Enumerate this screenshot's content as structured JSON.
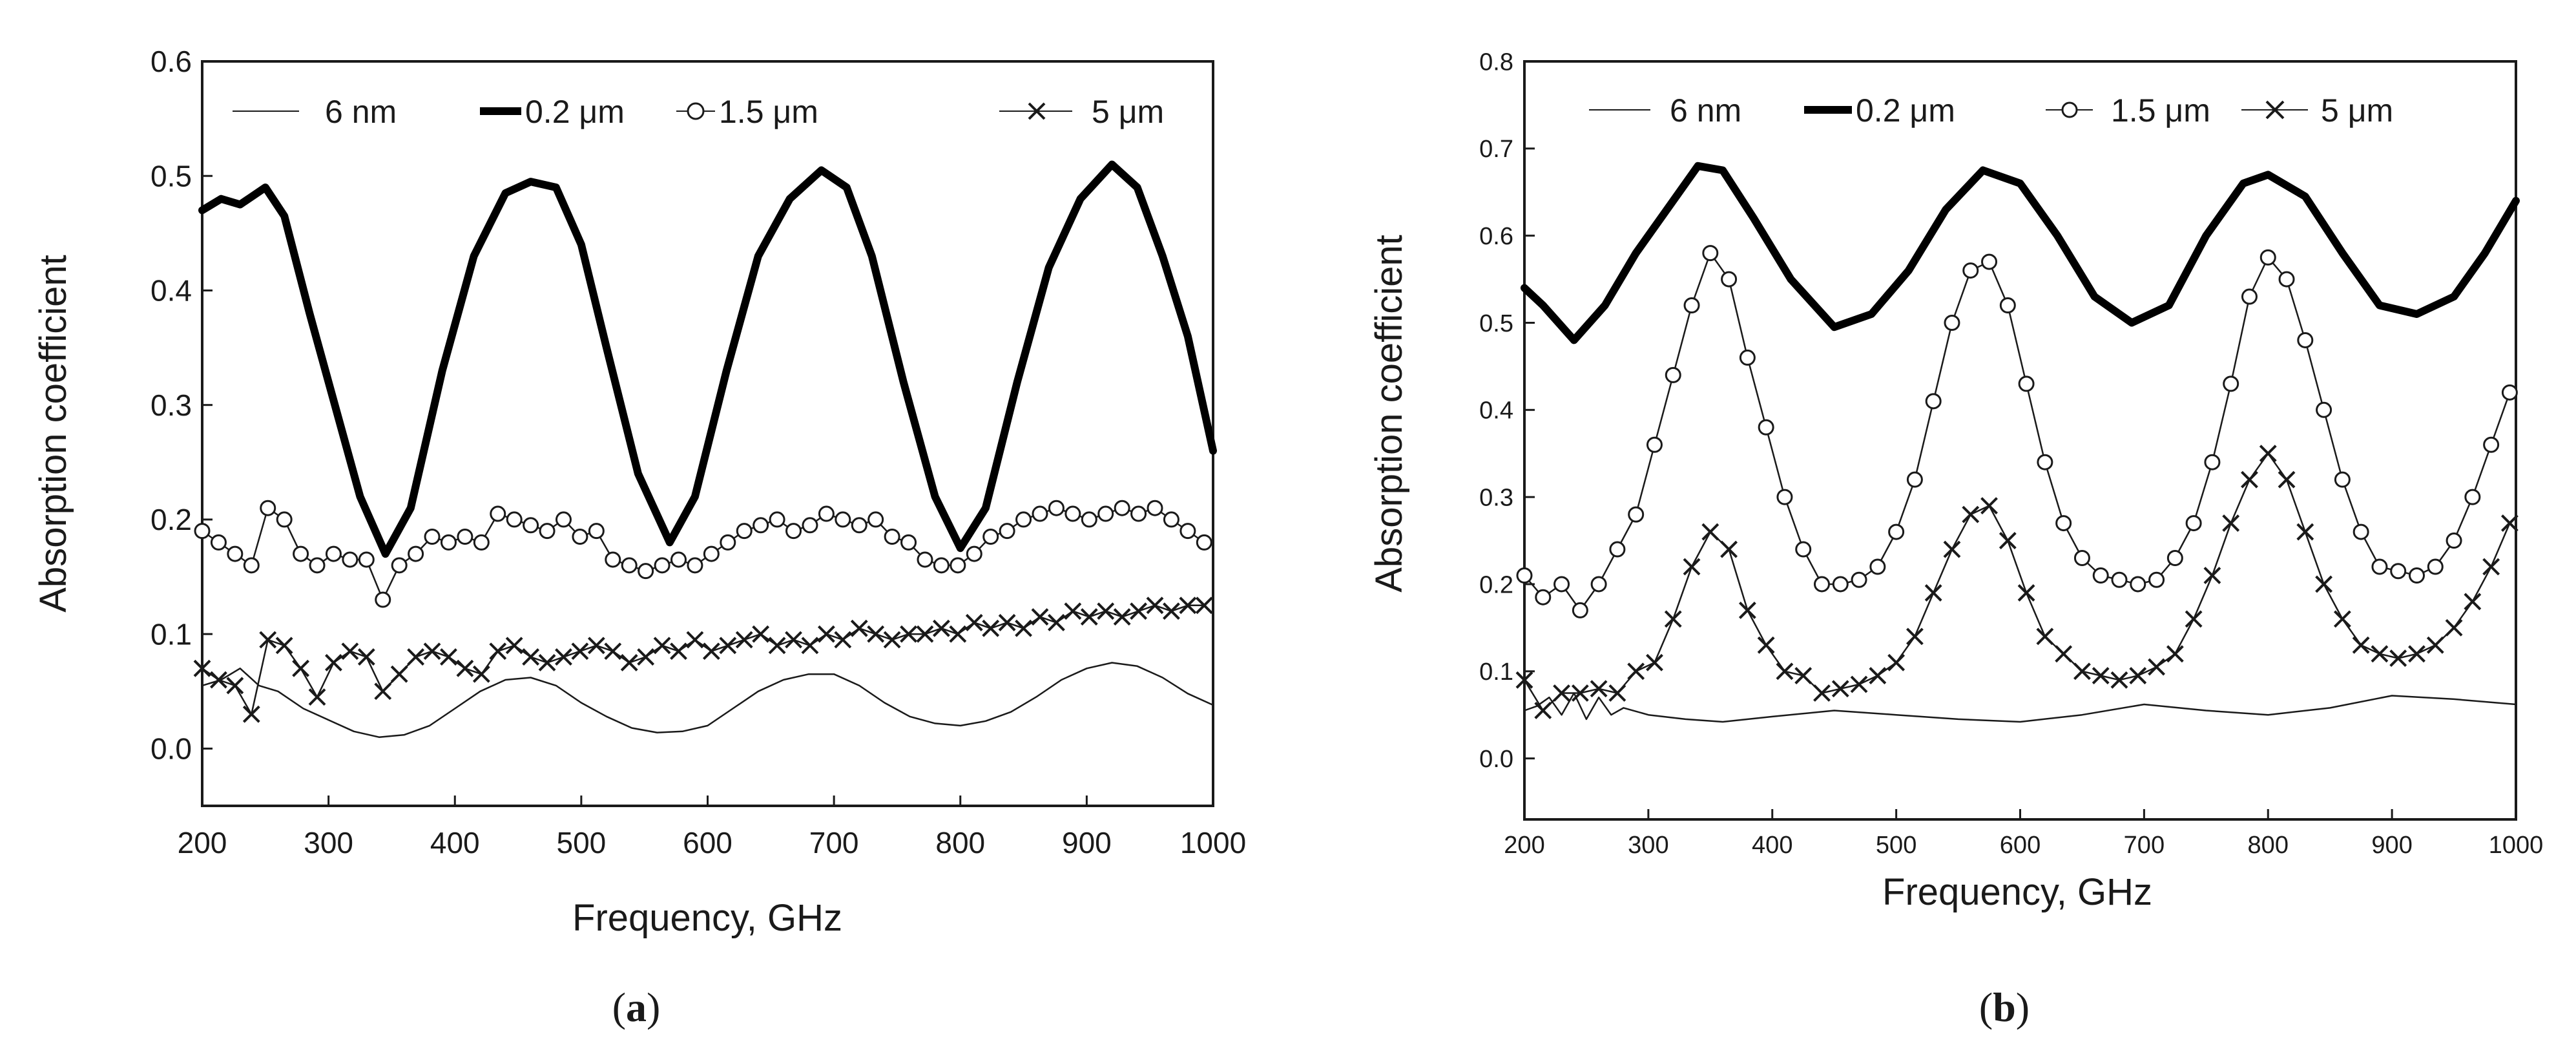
{
  "chart_data": [
    {
      "panel_label": "a",
      "type": "line",
      "xlabel": "Frequency, GHz",
      "ylabel": "Absorption coefficient",
      "xlim": [
        200,
        1000
      ],
      "ylim": [
        -0.05,
        0.6
      ],
      "xticks": [
        200,
        300,
        400,
        500,
        600,
        700,
        800,
        900,
        1000
      ],
      "yticks": [
        0.0,
        0.1,
        0.2,
        0.3,
        0.4,
        0.5,
        0.6
      ],
      "ytick_labels": [
        "0.0",
        "0.1",
        "0.2",
        "0.3",
        "0.4",
        "0.5",
        "0.6"
      ],
      "xtick_labels": [
        "200",
        "300",
        "400",
        "500",
        "600",
        "700",
        "800",
        "900",
        "1000"
      ],
      "grid": false,
      "legend_position": "top",
      "series": [
        {
          "name": "6 nm",
          "style": "thin",
          "x": [
            200,
            215,
            230,
            245,
            260,
            280,
            300,
            320,
            340,
            360,
            380,
            400,
            420,
            440,
            460,
            480,
            500,
            520,
            540,
            560,
            580,
            600,
            620,
            640,
            660,
            680,
            700,
            720,
            740,
            760,
            780,
            800,
            820,
            840,
            860,
            880,
            900,
            920,
            940,
            960,
            980,
            1000
          ],
          "y": [
            0.055,
            0.06,
            0.07,
            0.055,
            0.05,
            0.035,
            0.025,
            0.015,
            0.01,
            0.012,
            0.02,
            0.035,
            0.05,
            0.06,
            0.062,
            0.055,
            0.04,
            0.028,
            0.018,
            0.014,
            0.015,
            0.02,
            0.035,
            0.05,
            0.06,
            0.065,
            0.065,
            0.055,
            0.04,
            0.028,
            0.022,
            0.02,
            0.024,
            0.032,
            0.045,
            0.06,
            0.07,
            0.075,
            0.072,
            0.062,
            0.048,
            0.038
          ]
        },
        {
          "name": "0.2 μm",
          "style": "thick",
          "x": [
            200,
            215,
            230,
            250,
            265,
            285,
            305,
            325,
            345,
            365,
            390,
            415,
            440,
            460,
            480,
            500,
            520,
            545,
            570,
            590,
            615,
            640,
            665,
            690,
            710,
            730,
            755,
            780,
            800,
            820,
            845,
            870,
            895,
            920,
            940,
            960,
            980,
            1000
          ],
          "y": [
            0.47,
            0.48,
            0.475,
            0.49,
            0.465,
            0.38,
            0.3,
            0.22,
            0.17,
            0.21,
            0.33,
            0.43,
            0.485,
            0.495,
            0.49,
            0.44,
            0.35,
            0.24,
            0.18,
            0.22,
            0.33,
            0.43,
            0.48,
            0.505,
            0.49,
            0.43,
            0.32,
            0.22,
            0.175,
            0.21,
            0.32,
            0.42,
            0.48,
            0.51,
            0.49,
            0.43,
            0.36,
            0.26
          ]
        },
        {
          "name": "1.5 μm",
          "style": "circle",
          "x": [
            200,
            213,
            226,
            239,
            252,
            265,
            278,
            291,
            304,
            317,
            330,
            343,
            356,
            369,
            382,
            395,
            408,
            421,
            434,
            447,
            460,
            473,
            486,
            499,
            512,
            525,
            538,
            551,
            564,
            577,
            590,
            603,
            616,
            629,
            642,
            655,
            668,
            681,
            694,
            707,
            720,
            733,
            746,
            759,
            772,
            785,
            798,
            811,
            824,
            837,
            850,
            863,
            876,
            889,
            902,
            915,
            928,
            941,
            954,
            967,
            980,
            993
          ],
          "y": [
            0.19,
            0.18,
            0.17,
            0.16,
            0.21,
            0.2,
            0.17,
            0.16,
            0.17,
            0.165,
            0.165,
            0.13,
            0.16,
            0.17,
            0.185,
            0.18,
            0.185,
            0.18,
            0.205,
            0.2,
            0.195,
            0.19,
            0.2,
            0.185,
            0.19,
            0.165,
            0.16,
            0.155,
            0.16,
            0.165,
            0.16,
            0.17,
            0.18,
            0.19,
            0.195,
            0.2,
            0.19,
            0.195,
            0.205,
            0.2,
            0.195,
            0.2,
            0.185,
            0.18,
            0.165,
            0.16,
            0.16,
            0.17,
            0.185,
            0.19,
            0.2,
            0.205,
            0.21,
            0.205,
            0.2,
            0.205,
            0.21,
            0.205,
            0.21,
            0.2,
            0.19,
            0.18
          ]
        },
        {
          "name": "5 μm",
          "style": "cross",
          "x": [
            200,
            213,
            226,
            239,
            252,
            265,
            278,
            291,
            304,
            317,
            330,
            343,
            356,
            369,
            382,
            395,
            408,
            421,
            434,
            447,
            460,
            473,
            486,
            499,
            512,
            525,
            538,
            551,
            564,
            577,
            590,
            603,
            616,
            629,
            642,
            655,
            668,
            681,
            694,
            707,
            720,
            733,
            746,
            759,
            772,
            785,
            798,
            811,
            824,
            837,
            850,
            863,
            876,
            889,
            902,
            915,
            928,
            941,
            954,
            967,
            980,
            993
          ],
          "y": [
            0.07,
            0.06,
            0.055,
            0.03,
            0.095,
            0.09,
            0.07,
            0.045,
            0.075,
            0.085,
            0.08,
            0.05,
            0.065,
            0.08,
            0.085,
            0.08,
            0.07,
            0.065,
            0.085,
            0.09,
            0.08,
            0.075,
            0.08,
            0.085,
            0.09,
            0.085,
            0.075,
            0.08,
            0.09,
            0.085,
            0.095,
            0.085,
            0.09,
            0.095,
            0.1,
            0.09,
            0.095,
            0.09,
            0.1,
            0.095,
            0.105,
            0.1,
            0.095,
            0.1,
            0.1,
            0.105,
            0.1,
            0.11,
            0.105,
            0.11,
            0.105,
            0.115,
            0.11,
            0.12,
            0.115,
            0.12,
            0.115,
            0.12,
            0.125,
            0.12,
            0.125,
            0.125
          ]
        }
      ]
    },
    {
      "panel_label": "b",
      "type": "line",
      "xlabel": "Frequency, GHz",
      "ylabel": "Absorption coefficient",
      "xlim": [
        200,
        1000
      ],
      "ylim": [
        -0.07,
        0.8
      ],
      "xticks": [
        200,
        300,
        400,
        500,
        600,
        700,
        800,
        900,
        1000
      ],
      "yticks": [
        0.0,
        0.1,
        0.2,
        0.3,
        0.4,
        0.5,
        0.6,
        0.7,
        0.8
      ],
      "ytick_labels": [
        "0.0",
        "0.1",
        "0.2",
        "0.3",
        "0.4",
        "0.5",
        "0.6",
        "0.7",
        "0.8"
      ],
      "xtick_labels": [
        "200",
        "300",
        "400",
        "500",
        "600",
        "700",
        "800",
        "900",
        "1000"
      ],
      "grid": false,
      "legend_position": "top",
      "series": [
        {
          "name": "6 nm",
          "style": "thin",
          "x": [
            200,
            210,
            220,
            230,
            240,
            250,
            260,
            270,
            280,
            300,
            330,
            360,
            400,
            450,
            500,
            550,
            600,
            650,
            700,
            750,
            800,
            850,
            900,
            950,
            1000
          ],
          "y": [
            0.055,
            0.06,
            0.07,
            0.05,
            0.075,
            0.045,
            0.07,
            0.05,
            0.058,
            0.05,
            0.045,
            0.042,
            0.048,
            0.055,
            0.05,
            0.045,
            0.042,
            0.05,
            0.062,
            0.055,
            0.05,
            0.058,
            0.072,
            0.068,
            0.062
          ]
        },
        {
          "name": "0.2 μm",
          "style": "thick",
          "x": [
            200,
            215,
            240,
            265,
            290,
            315,
            340,
            360,
            385,
            415,
            450,
            480,
            510,
            540,
            570,
            600,
            630,
            660,
            690,
            720,
            750,
            780,
            800,
            830,
            860,
            890,
            920,
            950,
            975,
            1000
          ],
          "y": [
            0.54,
            0.52,
            0.48,
            0.52,
            0.58,
            0.63,
            0.68,
            0.675,
            0.62,
            0.55,
            0.495,
            0.51,
            0.56,
            0.63,
            0.675,
            0.66,
            0.6,
            0.53,
            0.5,
            0.52,
            0.6,
            0.66,
            0.67,
            0.645,
            0.58,
            0.52,
            0.51,
            0.53,
            0.58,
            0.64
          ]
        },
        {
          "name": "1.5 μm",
          "style": "circle",
          "x": [
            200,
            215,
            230,
            245,
            260,
            275,
            290,
            305,
            320,
            335,
            350,
            365,
            380,
            395,
            410,
            425,
            440,
            455,
            470,
            485,
            500,
            515,
            530,
            545,
            560,
            575,
            590,
            605,
            620,
            635,
            650,
            665,
            680,
            695,
            710,
            725,
            740,
            755,
            770,
            785,
            800,
            815,
            830,
            845,
            860,
            875,
            890,
            905,
            920,
            935,
            950,
            965,
            980,
            995
          ],
          "y": [
            0.21,
            0.185,
            0.2,
            0.17,
            0.2,
            0.24,
            0.28,
            0.36,
            0.44,
            0.52,
            0.58,
            0.55,
            0.46,
            0.38,
            0.3,
            0.24,
            0.2,
            0.2,
            0.205,
            0.22,
            0.26,
            0.32,
            0.41,
            0.5,
            0.56,
            0.57,
            0.52,
            0.43,
            0.34,
            0.27,
            0.23,
            0.21,
            0.205,
            0.2,
            0.205,
            0.23,
            0.27,
            0.34,
            0.43,
            0.53,
            0.575,
            0.55,
            0.48,
            0.4,
            0.32,
            0.26,
            0.22,
            0.215,
            0.21,
            0.22,
            0.25,
            0.3,
            0.36,
            0.42
          ]
        },
        {
          "name": "5 μm",
          "style": "cross",
          "x": [
            200,
            215,
            230,
            245,
            260,
            275,
            290,
            305,
            320,
            335,
            350,
            365,
            380,
            395,
            410,
            425,
            440,
            455,
            470,
            485,
            500,
            515,
            530,
            545,
            560,
            575,
            590,
            605,
            620,
            635,
            650,
            665,
            680,
            695,
            710,
            725,
            740,
            755,
            770,
            785,
            800,
            815,
            830,
            845,
            860,
            875,
            890,
            905,
            920,
            935,
            950,
            965,
            980,
            995
          ],
          "y": [
            0.09,
            0.055,
            0.075,
            0.075,
            0.08,
            0.075,
            0.1,
            0.11,
            0.16,
            0.22,
            0.26,
            0.24,
            0.17,
            0.13,
            0.1,
            0.095,
            0.075,
            0.08,
            0.085,
            0.095,
            0.11,
            0.14,
            0.19,
            0.24,
            0.28,
            0.29,
            0.25,
            0.19,
            0.14,
            0.12,
            0.1,
            0.095,
            0.09,
            0.095,
            0.105,
            0.12,
            0.16,
            0.21,
            0.27,
            0.32,
            0.35,
            0.32,
            0.26,
            0.2,
            0.16,
            0.13,
            0.12,
            0.115,
            0.12,
            0.13,
            0.15,
            0.18,
            0.22,
            0.27
          ]
        }
      ]
    }
  ]
}
